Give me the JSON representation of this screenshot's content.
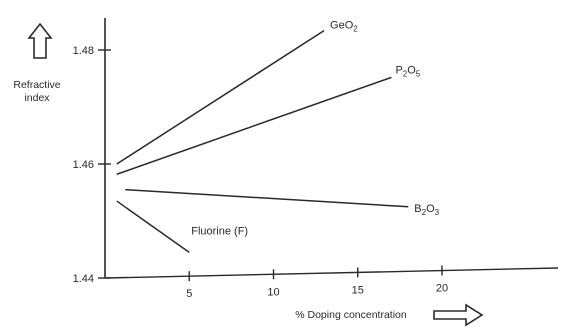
{
  "chart_data": {
    "type": "line",
    "title": "",
    "xlabel": "% Doping concentration",
    "ylabel_lines": [
      "Refractive",
      "index"
    ],
    "xlim": [
      0,
      25
    ],
    "ylim": [
      1.44,
      1.485
    ],
    "x_ticks": [
      5,
      10,
      15,
      20
    ],
    "x_tick_labels": [
      "5",
      "10",
      "15",
      "20"
    ],
    "y_ticks": [
      1.44,
      1.46,
      1.48
    ],
    "y_tick_labels": [
      "1.44",
      "1.46",
      "1.48"
    ],
    "grid": false,
    "series": [
      {
        "name": "GeO2",
        "label_main": "GeO",
        "label_subs": [
          "2"
        ],
        "x": [
          0.7,
          13
        ],
        "y": [
          1.46,
          1.4834
        ]
      },
      {
        "name": "P2O5",
        "label_main": "P",
        "label_subs": [
          "2",
          "O",
          "5"
        ],
        "x": [
          0.7,
          17
        ],
        "y": [
          1.4582,
          1.4752
        ]
      },
      {
        "name": "B2O3",
        "label_main": "B",
        "label_subs": [
          "2",
          "O",
          "3"
        ],
        "x": [
          1.2,
          18
        ],
        "y": [
          1.4555,
          1.4525
        ]
      },
      {
        "name": "Fluorine (F)",
        "label_main": "Fluorine (F)",
        "label_subs": [],
        "x": [
          0.7,
          5
        ],
        "y": [
          1.4535,
          1.4445
        ]
      }
    ],
    "line_color": "#2a2a2a"
  }
}
